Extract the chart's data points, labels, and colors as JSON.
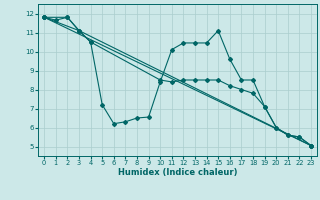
{
  "xlabel": "Humidex (Indice chaleur)",
  "xlim": [
    -0.5,
    23.5
  ],
  "ylim": [
    4.5,
    12.5
  ],
  "yticks": [
    5,
    6,
    7,
    8,
    9,
    10,
    11,
    12
  ],
  "xticks": [
    0,
    1,
    2,
    3,
    4,
    5,
    6,
    7,
    8,
    9,
    10,
    11,
    12,
    13,
    14,
    15,
    16,
    17,
    18,
    19,
    20,
    21,
    22,
    23
  ],
  "bg_color": "#cce8e8",
  "grid_color": "#aacece",
  "line_color": "#006666",
  "lines": [
    {
      "x": [
        0,
        1,
        2,
        3,
        4,
        5,
        6,
        7,
        8,
        9,
        10,
        11,
        12,
        13,
        14,
        15,
        16,
        17,
        18,
        19,
        20,
        21,
        22,
        23
      ],
      "y": [
        11.8,
        11.65,
        11.8,
        11.1,
        10.5,
        7.2,
        6.2,
        6.3,
        6.5,
        6.55,
        8.4,
        10.1,
        10.45,
        10.45,
        10.45,
        11.1,
        9.6,
        8.5,
        8.5,
        7.1,
        6.0,
        5.6,
        5.5,
        5.05
      ]
    },
    {
      "x": [
        0,
        2,
        3,
        4,
        10,
        11,
        12,
        13,
        14,
        15,
        16,
        17,
        18,
        19,
        20,
        21,
        22,
        23
      ],
      "y": [
        11.8,
        11.8,
        11.1,
        10.5,
        8.5,
        8.4,
        8.5,
        8.5,
        8.5,
        8.5,
        8.2,
        8.0,
        7.8,
        7.1,
        6.0,
        5.6,
        5.5,
        5.05
      ]
    },
    {
      "x": [
        0,
        3,
        23
      ],
      "y": [
        11.8,
        11.1,
        5.05
      ]
    },
    {
      "x": [
        0,
        23
      ],
      "y": [
        11.8,
        5.05
      ]
    }
  ]
}
